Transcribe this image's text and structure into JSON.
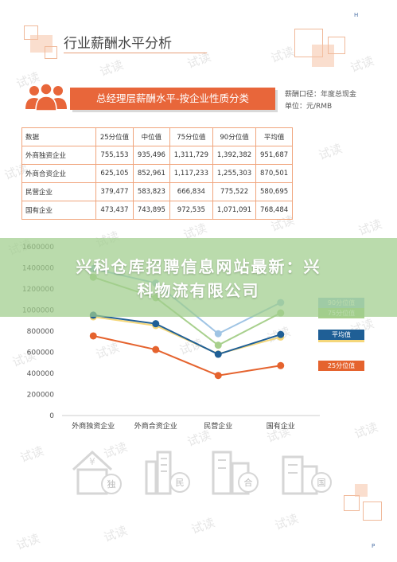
{
  "page": {
    "title": "行业薪酬水平分析",
    "section_title": "总经理层薪酬水平-按企业性质分类",
    "note_line1": "薪酬口径：年度总现金",
    "note_line2": "单位：元/RMB",
    "watermark": "试读",
    "corner_top": "H",
    "corner_bottom": "P"
  },
  "table": {
    "headers": [
      "数据",
      "25分位值",
      "中位值",
      "75分位值",
      "90分位值",
      "平均值"
    ],
    "rows": [
      [
        "外商独资企业",
        "755,153",
        "935,496",
        "1,311,729",
        "1,392,382",
        "951,687"
      ],
      [
        "外商合资企业",
        "625,105",
        "852,961",
        "1,117,233",
        "1,255,303",
        "870,501"
      ],
      [
        "民营企业",
        "379,477",
        "583,823",
        "666,834",
        "775,522",
        "580,695"
      ],
      [
        "国有企业",
        "473,437",
        "743,895",
        "972,535",
        "1,071,091",
        "768,484"
      ]
    ]
  },
  "banner": {
    "line1": "兴科仓库招聘信息网站最新：兴",
    "line2": "科物流有限公司"
  },
  "chart_data": {
    "type": "line",
    "categories": [
      "外商独资企业",
      "外商合资企业",
      "民营企业",
      "国有企业"
    ],
    "ylim": [
      0,
      1600000
    ],
    "yticks": [
      0,
      200000,
      400000,
      600000,
      800000,
      1000000,
      1200000,
      1400000,
      1600000
    ],
    "ytick_labels": [
      "0",
      "200000",
      "400000",
      "600000",
      "800000",
      "1000000",
      "1200000",
      "1400000",
      "1600000"
    ],
    "series": [
      {
        "name": "90分位值",
        "color": "#9fc4e4",
        "values": [
          1392382,
          1255303,
          775522,
          1071091
        ]
      },
      {
        "name": "75分位值",
        "color": "#a8d08d",
        "values": [
          1311729,
          1117233,
          666834,
          972535
        ]
      },
      {
        "name": "中位值",
        "color": "#f5d77a",
        "values": [
          935496,
          852961,
          583823,
          743895
        ]
      },
      {
        "name": "平均值",
        "color": "#1f5f96",
        "values": [
          951687,
          870501,
          580695,
          768484
        ]
      },
      {
        "name": "25分位值",
        "color": "#e5632e",
        "values": [
          755153,
          625105,
          379477,
          473437
        ]
      }
    ],
    "legend_placement": "right"
  },
  "bottom_icons": {
    "icon1_char": "独",
    "icon2_char": "民",
    "icon3_char": "合",
    "icon4_char": "国"
  }
}
